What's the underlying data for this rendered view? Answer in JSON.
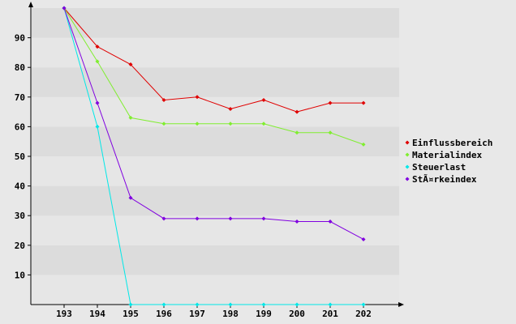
{
  "chart_data": {
    "type": "line",
    "title": "",
    "xlabel": "",
    "ylabel": "",
    "categories": [
      "193",
      "194",
      "195",
      "196",
      "197",
      "198",
      "199",
      "200",
      "201",
      "202"
    ],
    "ylim": [
      0,
      100
    ],
    "yticks": [
      10,
      20,
      30,
      40,
      50,
      60,
      70,
      80,
      90
    ],
    "grid": true,
    "legend_position": "right",
    "series": [
      {
        "name": "Einflussbereich",
        "color": "#e00000",
        "values": [
          100,
          87,
          81,
          69,
          70,
          66,
          69,
          65,
          68,
          68
        ]
      },
      {
        "name": "Materialindex",
        "color": "#80ee30",
        "values": [
          100,
          82,
          63,
          61,
          61,
          61,
          61,
          58,
          58,
          54
        ]
      },
      {
        "name": "Steuerlast",
        "color": "#00e8e8",
        "values": [
          100,
          60,
          0,
          0,
          0,
          0,
          0,
          0,
          0,
          0
        ]
      },
      {
        "name": "StÃ¤rkeindex",
        "color": "#8000e0",
        "values": [
          100,
          68,
          36,
          29,
          29,
          29,
          29,
          28,
          28,
          22
        ]
      }
    ]
  }
}
